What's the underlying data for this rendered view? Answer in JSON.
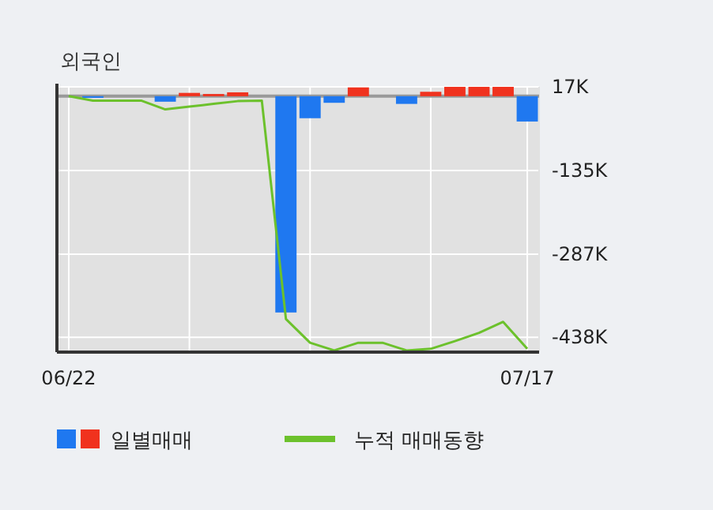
{
  "chart_data": {
    "type": "bar",
    "title": "외국인",
    "categories": [
      "06/22",
      null,
      null,
      null,
      null,
      null,
      null,
      null,
      null,
      null,
      null,
      null,
      null,
      null,
      null,
      null,
      null,
      null,
      null,
      "07/17"
    ],
    "series": [
      {
        "name": "일별매매",
        "values": [
          0,
          -3000,
          0,
          0,
          -10000,
          6000,
          4000,
          7000,
          0,
          -393000,
          -40000,
          -12000,
          16000,
          0,
          -14000,
          8000,
          17000,
          17000,
          17000,
          -46000
        ],
        "colors": [
          "#1f78f0",
          "#1f78f0",
          "#1f78f0",
          "#1f78f0",
          "#1f78f0",
          "#f0321e",
          "#f0321e",
          "#f0321e",
          "#1f78f0",
          "#1f78f0",
          "#1f78f0",
          "#1f78f0",
          "#f0321e",
          "#1f78f0",
          "#1f78f0",
          "#f0321e",
          "#f0321e",
          "#f0321e",
          "#f0321e",
          "#1f78f0"
        ]
      },
      {
        "name": "누적 매매동향",
        "type": "line",
        "color": "#6cc12c",
        "values": [
          0,
          -8000,
          -8000,
          -8000,
          -24000,
          -19000,
          -14000,
          -9000,
          -8000,
          -405000,
          -448000,
          -462000,
          -448000,
          -448000,
          -462000,
          -459000,
          -445000,
          -430000,
          -410000,
          -459000
        ]
      }
    ],
    "ylim": [
      -465000,
      17000
    ],
    "yticks": [
      {
        "value": 17000,
        "label": "17K"
      },
      {
        "value": -135000,
        "label": "-135K"
      },
      {
        "value": -287000,
        "label": "-287K"
      },
      {
        "value": -438000,
        "label": "-438K"
      }
    ],
    "grid": true,
    "legend": "bottom"
  }
}
